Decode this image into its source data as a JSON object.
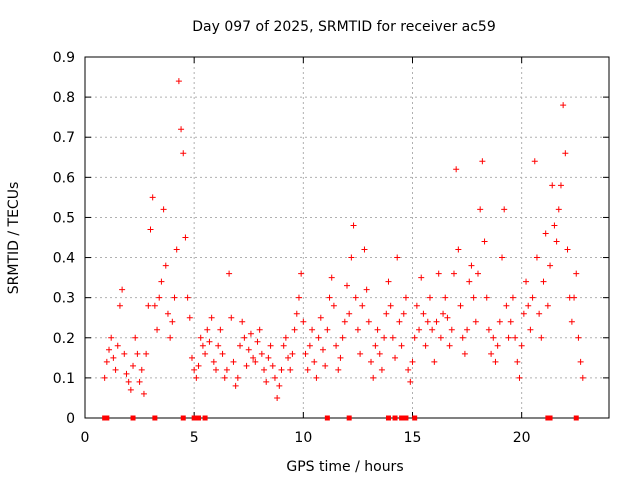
{
  "chart_data": {
    "type": "scatter",
    "title": "Day 097 of 2025, SRMTID for receiver ac59",
    "xlabel": "GPS time / hours",
    "ylabel": "SRMTID / TECUs",
    "xlim": [
      0,
      24
    ],
    "ylim": [
      0,
      0.9
    ],
    "grid": true,
    "xticks": [
      0,
      5,
      10,
      15,
      20
    ],
    "yticks": [
      0,
      0.1,
      0.2,
      0.3,
      0.4,
      0.5,
      0.6,
      0.7,
      0.8,
      0.9
    ],
    "xtick_labels": [
      "0",
      "5",
      "10",
      "15",
      "20"
    ],
    "ytick_labels": [
      "0",
      "0.1",
      "0.2",
      "0.3",
      "0.4",
      "0.5",
      "0.6",
      "0.7",
      "0.8",
      "0.9"
    ],
    "series": [
      {
        "name": "SRMTID",
        "marker": "+",
        "color": "#ff0000",
        "points": [
          [
            0.9,
            0.1
          ],
          [
            1.0,
            0.14
          ],
          [
            1.1,
            0.17
          ],
          [
            1.2,
            0.2
          ],
          [
            1.3,
            0.15
          ],
          [
            1.4,
            0.12
          ],
          [
            1.5,
            0.18
          ],
          [
            1.6,
            0.28
          ],
          [
            1.7,
            0.32
          ],
          [
            1.8,
            0.16
          ],
          [
            1.9,
            0.11
          ],
          [
            2.0,
            0.09
          ],
          [
            2.1,
            0.07
          ],
          [
            2.2,
            0.13
          ],
          [
            2.3,
            0.2
          ],
          [
            2.4,
            0.16
          ],
          [
            2.5,
            0.09
          ],
          [
            2.6,
            0.12
          ],
          [
            2.7,
            0.06
          ],
          [
            2.8,
            0.16
          ],
          [
            2.9,
            0.28
          ],
          [
            3.0,
            0.47
          ],
          [
            3.1,
            0.55
          ],
          [
            3.2,
            0.28
          ],
          [
            3.3,
            0.22
          ],
          [
            3.4,
            0.3
          ],
          [
            3.5,
            0.34
          ],
          [
            3.6,
            0.52
          ],
          [
            3.7,
            0.38
          ],
          [
            3.8,
            0.26
          ],
          [
            3.9,
            0.2
          ],
          [
            4.0,
            0.24
          ],
          [
            4.1,
            0.3
          ],
          [
            4.2,
            0.42
          ],
          [
            4.3,
            0.84
          ],
          [
            4.4,
            0.72
          ],
          [
            4.5,
            0.66
          ],
          [
            4.6,
            0.45
          ],
          [
            4.7,
            0.3
          ],
          [
            4.8,
            0.25
          ],
          [
            4.9,
            0.15
          ],
          [
            5.0,
            0.12
          ],
          [
            5.1,
            0.1
          ],
          [
            5.2,
            0.13
          ],
          [
            5.3,
            0.2
          ],
          [
            5.4,
            0.18
          ],
          [
            5.5,
            0.16
          ],
          [
            5.6,
            0.22
          ],
          [
            5.7,
            0.19
          ],
          [
            5.8,
            0.25
          ],
          [
            5.9,
            0.14
          ],
          [
            6.0,
            0.12
          ],
          [
            6.1,
            0.18
          ],
          [
            6.2,
            0.22
          ],
          [
            6.3,
            0.16
          ],
          [
            6.4,
            0.1
          ],
          [
            6.5,
            0.12
          ],
          [
            6.6,
            0.36
          ],
          [
            6.7,
            0.25
          ],
          [
            6.8,
            0.14
          ],
          [
            6.9,
            0.08
          ],
          [
            7.0,
            0.1
          ],
          [
            7.1,
            0.18
          ],
          [
            7.2,
            0.24
          ],
          [
            7.3,
            0.2
          ],
          [
            7.4,
            0.13
          ],
          [
            7.5,
            0.17
          ],
          [
            7.6,
            0.21
          ],
          [
            7.7,
            0.15
          ],
          [
            7.8,
            0.14
          ],
          [
            7.9,
            0.19
          ],
          [
            8.0,
            0.22
          ],
          [
            8.1,
            0.16
          ],
          [
            8.2,
            0.12
          ],
          [
            8.3,
            0.09
          ],
          [
            8.4,
            0.15
          ],
          [
            8.5,
            0.18
          ],
          [
            8.6,
            0.13
          ],
          [
            8.7,
            0.1
          ],
          [
            8.8,
            0.05
          ],
          [
            8.9,
            0.08
          ],
          [
            9.0,
            0.12
          ],
          [
            9.1,
            0.18
          ],
          [
            9.2,
            0.2
          ],
          [
            9.3,
            0.15
          ],
          [
            9.4,
            0.12
          ],
          [
            9.5,
            0.16
          ],
          [
            9.6,
            0.22
          ],
          [
            9.7,
            0.26
          ],
          [
            9.8,
            0.3
          ],
          [
            9.9,
            0.36
          ],
          [
            10.0,
            0.24
          ],
          [
            10.1,
            0.16
          ],
          [
            10.2,
            0.12
          ],
          [
            10.3,
            0.18
          ],
          [
            10.4,
            0.22
          ],
          [
            10.5,
            0.14
          ],
          [
            10.6,
            0.1
          ],
          [
            10.7,
            0.2
          ],
          [
            10.8,
            0.25
          ],
          [
            10.9,
            0.17
          ],
          [
            11.0,
            0.13
          ],
          [
            11.1,
            0.22
          ],
          [
            11.2,
            0.3
          ],
          [
            11.3,
            0.35
          ],
          [
            11.4,
            0.28
          ],
          [
            11.5,
            0.18
          ],
          [
            11.6,
            0.12
          ],
          [
            11.7,
            0.15
          ],
          [
            11.8,
            0.2
          ],
          [
            11.9,
            0.24
          ],
          [
            12.0,
            0.33
          ],
          [
            12.1,
            0.26
          ],
          [
            12.2,
            0.4
          ],
          [
            12.3,
            0.48
          ],
          [
            12.4,
            0.3
          ],
          [
            12.5,
            0.22
          ],
          [
            12.6,
            0.16
          ],
          [
            12.7,
            0.28
          ],
          [
            12.8,
            0.42
          ],
          [
            12.9,
            0.32
          ],
          [
            13.0,
            0.24
          ],
          [
            13.1,
            0.14
          ],
          [
            13.2,
            0.1
          ],
          [
            13.3,
            0.18
          ],
          [
            13.4,
            0.22
          ],
          [
            13.5,
            0.16
          ],
          [
            13.6,
            0.12
          ],
          [
            13.7,
            0.2
          ],
          [
            13.8,
            0.26
          ],
          [
            13.9,
            0.34
          ],
          [
            14.0,
            0.28
          ],
          [
            14.1,
            0.2
          ],
          [
            14.2,
            0.15
          ],
          [
            14.3,
            0.4
          ],
          [
            14.4,
            0.24
          ],
          [
            14.5,
            0.18
          ],
          [
            14.6,
            0.26
          ],
          [
            14.7,
            0.3
          ],
          [
            14.8,
            0.12
          ],
          [
            14.9,
            0.09
          ],
          [
            15.0,
            0.14
          ],
          [
            15.1,
            0.2
          ],
          [
            15.2,
            0.28
          ],
          [
            15.3,
            0.22
          ],
          [
            15.4,
            0.35
          ],
          [
            15.5,
            0.26
          ],
          [
            15.6,
            0.18
          ],
          [
            15.7,
            0.24
          ],
          [
            15.8,
            0.3
          ],
          [
            15.9,
            0.22
          ],
          [
            16.0,
            0.14
          ],
          [
            16.1,
            0.24
          ],
          [
            16.2,
            0.36
          ],
          [
            16.3,
            0.2
          ],
          [
            16.4,
            0.26
          ],
          [
            16.5,
            0.3
          ],
          [
            16.6,
            0.25
          ],
          [
            16.7,
            0.18
          ],
          [
            16.8,
            0.22
          ],
          [
            16.9,
            0.36
          ],
          [
            17.0,
            0.62
          ],
          [
            17.1,
            0.42
          ],
          [
            17.2,
            0.28
          ],
          [
            17.3,
            0.2
          ],
          [
            17.4,
            0.16
          ],
          [
            17.5,
            0.22
          ],
          [
            17.6,
            0.34
          ],
          [
            17.7,
            0.38
          ],
          [
            17.8,
            0.3
          ],
          [
            17.9,
            0.24
          ],
          [
            18.0,
            0.36
          ],
          [
            18.1,
            0.52
          ],
          [
            18.2,
            0.64
          ],
          [
            18.3,
            0.44
          ],
          [
            18.4,
            0.3
          ],
          [
            18.5,
            0.22
          ],
          [
            18.6,
            0.16
          ],
          [
            18.7,
            0.2
          ],
          [
            18.8,
            0.14
          ],
          [
            18.9,
            0.18
          ],
          [
            19.0,
            0.24
          ],
          [
            19.1,
            0.4
          ],
          [
            19.2,
            0.52
          ],
          [
            19.3,
            0.28
          ],
          [
            19.4,
            0.2
          ],
          [
            19.5,
            0.24
          ],
          [
            19.6,
            0.3
          ],
          [
            19.7,
            0.2
          ],
          [
            19.8,
            0.14
          ],
          [
            19.9,
            0.1
          ],
          [
            20.0,
            0.18
          ],
          [
            20.1,
            0.26
          ],
          [
            20.2,
            0.34
          ],
          [
            20.3,
            0.28
          ],
          [
            20.4,
            0.22
          ],
          [
            20.5,
            0.3
          ],
          [
            20.6,
            0.64
          ],
          [
            20.7,
            0.4
          ],
          [
            20.8,
            0.26
          ],
          [
            20.9,
            0.2
          ],
          [
            21.0,
            0.34
          ],
          [
            21.1,
            0.46
          ],
          [
            21.2,
            0.28
          ],
          [
            21.3,
            0.38
          ],
          [
            21.4,
            0.58
          ],
          [
            21.5,
            0.48
          ],
          [
            21.6,
            0.44
          ],
          [
            21.7,
            0.52
          ],
          [
            21.8,
            0.58
          ],
          [
            21.9,
            0.78
          ],
          [
            22.0,
            0.66
          ],
          [
            22.1,
            0.42
          ],
          [
            22.2,
            0.3
          ],
          [
            22.3,
            0.24
          ],
          [
            22.4,
            0.3
          ],
          [
            22.5,
            0.36
          ],
          [
            22.6,
            0.2
          ],
          [
            22.7,
            0.14
          ],
          [
            22.8,
            0.1
          ]
        ]
      }
    ],
    "zero_markers_x": [
      0.9,
      1.0,
      2.2,
      3.2,
      4.5,
      5.0,
      5.2,
      5.5,
      11.1,
      12.1,
      13.9,
      14.2,
      14.5,
      14.7,
      15.1,
      21.2,
      21.3,
      22.5
    ]
  }
}
